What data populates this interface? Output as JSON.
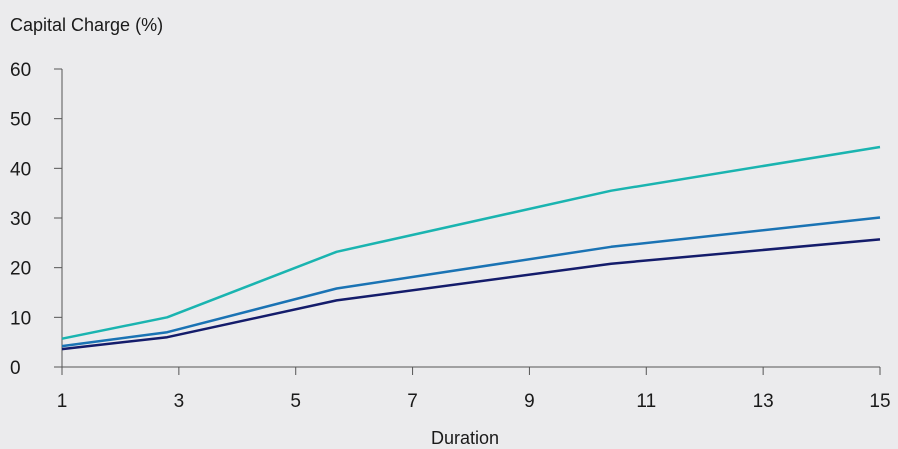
{
  "chart_data": {
    "type": "line",
    "ylabel": "Capital Charge (%)",
    "xlabel": "Duration",
    "xlim": [
      1,
      15
    ],
    "ylim": [
      0,
      60
    ],
    "xticks": [
      1,
      3,
      5,
      7,
      9,
      11,
      13,
      15
    ],
    "yticks": [
      0,
      10,
      20,
      30,
      40,
      50,
      60
    ],
    "grid": false,
    "series": [
      {
        "color": "#1ab4b0",
        "x": [
          1,
          2.8,
          5.7,
          10.4,
          15
        ],
        "y": [
          5.7,
          10.0,
          23.2,
          35.5,
          44.3
        ]
      },
      {
        "color": "#1a73b4",
        "x": [
          1,
          2.8,
          5.7,
          10.4,
          15
        ],
        "y": [
          4.2,
          7.0,
          15.8,
          24.2,
          30.1
        ]
      },
      {
        "color": "#141c6b",
        "x": [
          1,
          2.8,
          5.7,
          10.4,
          15
        ],
        "y": [
          3.6,
          6.0,
          13.4,
          20.8,
          25.7
        ]
      }
    ]
  }
}
